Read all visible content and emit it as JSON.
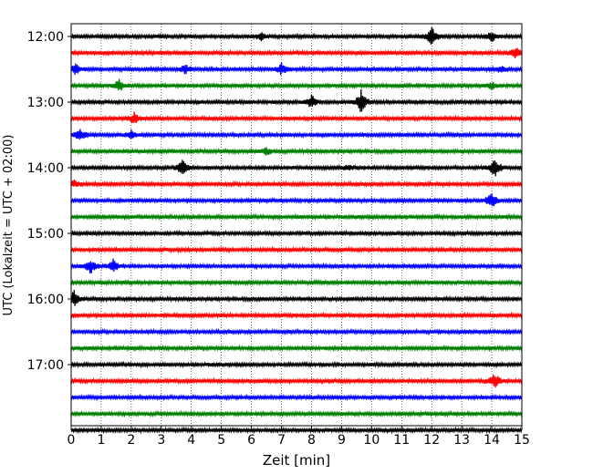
{
  "chart_data": {
    "type": "line",
    "subtype": "helicorder",
    "xlabel": "Zeit  [min]",
    "ylabel": "UTC (Lokalzeit = UTC + 02:00)",
    "xlim": [
      0,
      15
    ],
    "x_ticks": [
      "0",
      "1",
      "2",
      "3",
      "4",
      "5",
      "6",
      "7",
      "8",
      "9",
      "10",
      "11",
      "12",
      "13",
      "14",
      "15"
    ],
    "y_tick_labels": [
      "12:00",
      "13:00",
      "14:00",
      "15:00",
      "16:00",
      "17:00"
    ],
    "trace_interval_min": 15,
    "start_time": "12:00",
    "trace_count": 25,
    "color_cycle": [
      "#000000",
      "#ff0000",
      "#0000ff",
      "#008000"
    ],
    "grid": "vertical dotted",
    "events": [
      {
        "trace": 0,
        "time_min": 6.3,
        "amp": 0.25
      },
      {
        "trace": 0,
        "time_min": 12.0,
        "amp": 0.6
      },
      {
        "trace": 0,
        "time_min": 14.0,
        "amp": 0.3
      },
      {
        "trace": 1,
        "time_min": 14.8,
        "amp": 0.3
      },
      {
        "trace": 2,
        "time_min": 0.15,
        "amp": 0.3
      },
      {
        "trace": 2,
        "time_min": 3.8,
        "amp": 0.25
      },
      {
        "trace": 2,
        "time_min": 7.0,
        "amp": 0.35
      },
      {
        "trace": 2,
        "time_min": 14.3,
        "amp": 0.2
      },
      {
        "trace": 3,
        "time_min": 1.6,
        "amp": 0.35
      },
      {
        "trace": 3,
        "time_min": 14.0,
        "amp": 0.2
      },
      {
        "trace": 4,
        "time_min": 8.0,
        "amp": 0.4
      },
      {
        "trace": 4,
        "time_min": 9.65,
        "amp": 0.7
      },
      {
        "trace": 5,
        "time_min": 2.1,
        "amp": 0.35
      },
      {
        "trace": 6,
        "time_min": 0.3,
        "amp": 0.4
      },
      {
        "trace": 6,
        "time_min": 2.0,
        "amp": 0.25
      },
      {
        "trace": 7,
        "time_min": 6.5,
        "amp": 0.2
      },
      {
        "trace": 8,
        "time_min": 3.7,
        "amp": 0.55
      },
      {
        "trace": 8,
        "time_min": 9.2,
        "amp": 0.15
      },
      {
        "trace": 8,
        "time_min": 14.1,
        "amp": 0.6
      },
      {
        "trace": 9,
        "time_min": 0.1,
        "amp": 0.2
      },
      {
        "trace": 10,
        "time_min": 14.0,
        "amp": 0.5
      },
      {
        "trace": 14,
        "time_min": 0.65,
        "amp": 0.45
      },
      {
        "trace": 14,
        "time_min": 1.4,
        "amp": 0.4
      },
      {
        "trace": 16,
        "time_min": 0.1,
        "amp": 0.45
      },
      {
        "trace": 21,
        "time_min": 14.1,
        "amp": 0.45
      }
    ]
  }
}
